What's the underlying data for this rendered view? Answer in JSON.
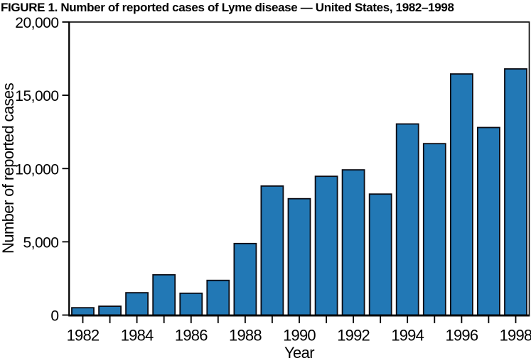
{
  "figure": {
    "title": "FIGURE 1. Number of reported cases of Lyme disease — United States, 1982–1998"
  },
  "chart_data": {
    "type": "bar",
    "title": "FIGURE 1. Number of reported cases of Lyme disease — United States, 1982–1998",
    "xlabel": "Year",
    "ylabel": "Number of reported cases",
    "categories": [
      "1982",
      "1983",
      "1984",
      "1985",
      "1986",
      "1987",
      "1988",
      "1989",
      "1990",
      "1991",
      "1992",
      "1993",
      "1994",
      "1995",
      "1996",
      "1997",
      "1998"
    ],
    "values": [
      497,
      599,
      1520,
      2748,
      1487,
      2368,
      4882,
      8803,
      7943,
      9470,
      9908,
      8257,
      13043,
      11700,
      16455,
      12801,
      16801
    ],
    "ylim": [
      0,
      20000
    ],
    "yticks": [
      0,
      5000,
      10000,
      15000,
      20000
    ],
    "ytick_labels": [
      "0",
      "5,000",
      "10,000",
      "15,000",
      "20,000"
    ],
    "xtick_labeled_categories": [
      "1982",
      "1984",
      "1986",
      "1988",
      "1990",
      "1992",
      "1994",
      "1996",
      "1998"
    ],
    "grid": false,
    "legend": false,
    "bar_color": "#2278b5",
    "bar_edge_color": "#0a0a12",
    "axis_color": "#000000",
    "background_color": "#ffffff"
  }
}
